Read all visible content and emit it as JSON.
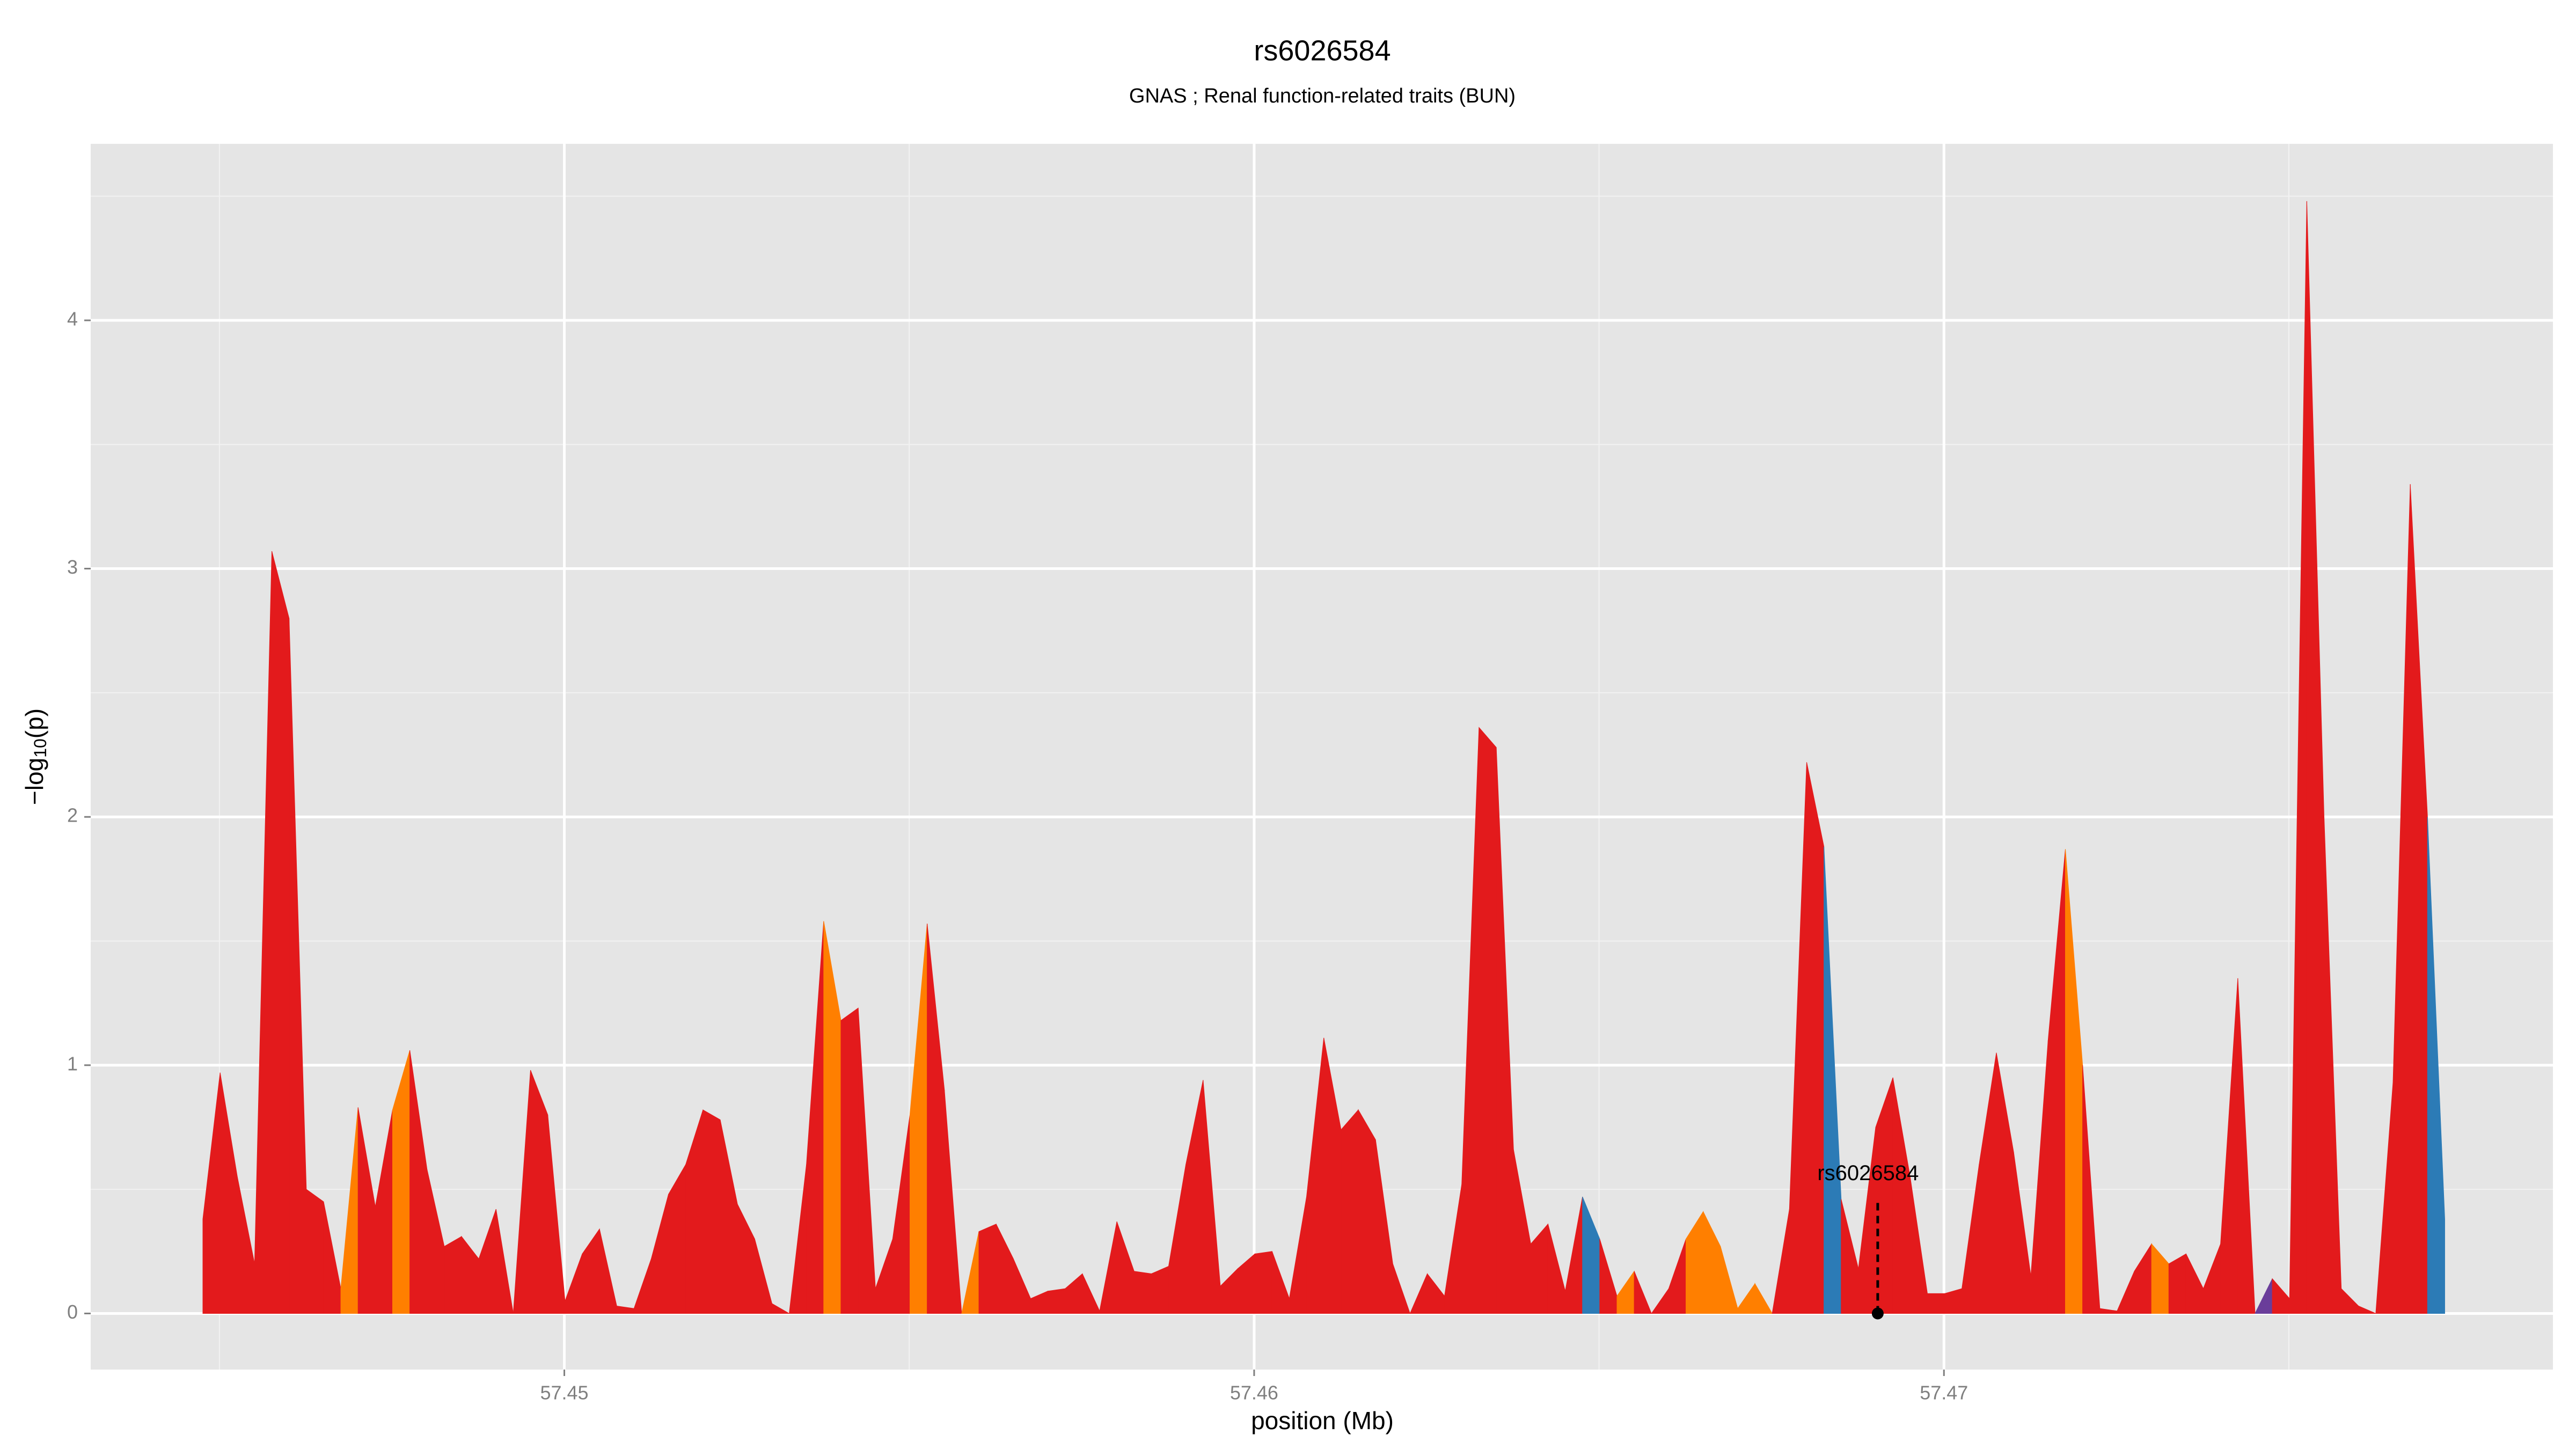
{
  "chart_data": {
    "type": "area",
    "title": "rs6026584",
    "subtitle": "GNAS ; Renal function-related traits (BUN)",
    "xlabel": "position (Mb)",
    "ylabel": {
      "prefix": "−log",
      "sub": "10",
      "suffix": "(p)"
    },
    "xlim": [
      57.443134,
      57.478828
    ],
    "ylim": [
      -0.226,
      4.711
    ],
    "xticks": [
      57.45,
      57.46,
      57.47
    ],
    "yticks": [
      0,
      1,
      2,
      3,
      4
    ],
    "xminor": [
      57.445,
      57.455,
      57.465,
      57.475
    ],
    "yminor": [
      0.5,
      1.5,
      2.5,
      3.5,
      4.5
    ],
    "grid": true,
    "palette": [
      "#e31a1c",
      "#ff7f00",
      "#2c7bb6",
      "#6a3d9a"
    ],
    "x": [
      57.44476,
      57.44501,
      57.44526,
      57.44551,
      57.44576,
      57.44601,
      57.44626,
      57.44651,
      57.44676,
      57.44701,
      57.44726,
      57.44751,
      57.44776,
      57.44801,
      57.44826,
      57.44851,
      57.44876,
      57.44901,
      57.44926,
      57.44951,
      57.44976,
      57.45001,
      57.45026,
      57.45051,
      57.45076,
      57.45101,
      57.45126,
      57.45151,
      57.45176,
      57.45201,
      57.45226,
      57.45251,
      57.45276,
      57.45301,
      57.45326,
      57.45351,
      57.45376,
      57.45401,
      57.45426,
      57.45451,
      57.45476,
      57.45501,
      57.45526,
      57.45551,
      57.45576,
      57.45601,
      57.45626,
      57.45651,
      57.45676,
      57.45701,
      57.45726,
      57.45751,
      57.45776,
      57.45801,
      57.45826,
      57.45851,
      57.45876,
      57.45901,
      57.45926,
      57.45951,
      57.45976,
      57.46001,
      57.46026,
      57.46051,
      57.46076,
      57.46101,
      57.46126,
      57.46151,
      57.46176,
      57.46201,
      57.46226,
      57.46251,
      57.46276,
      57.46301,
      57.46326,
      57.46351,
      57.46376,
      57.46401,
      57.46426,
      57.46451,
      57.46476,
      57.46501,
      57.46526,
      57.46551,
      57.46576,
      57.46601,
      57.46626,
      57.46651,
      57.46676,
      57.46701,
      57.46726,
      57.46751,
      57.46776,
      57.46801,
      57.46826,
      57.46851,
      57.46876,
      57.46901,
      57.46926,
      57.46951,
      57.46976,
      57.47001,
      57.47026,
      57.47051,
      57.47076,
      57.47101,
      57.47126,
      57.47151,
      57.47176,
      57.47201,
      57.47226,
      57.47251,
      57.47276,
      57.47301,
      57.47326,
      57.47351,
      57.47376,
      57.47401,
      57.47426,
      57.47451,
      57.47476,
      57.47501,
      57.47526,
      57.47551,
      57.47576,
      57.47601,
      57.47626,
      57.47651,
      57.47676,
      57.47701,
      57.47726
    ],
    "values": [
      0.38,
      0.97,
      0.55,
      0.2,
      3.07,
      2.8,
      0.5,
      0.45,
      0.1,
      0.83,
      0.43,
      0.82,
      1.06,
      0.58,
      0.27,
      0.31,
      0.22,
      0.42,
      0.0,
      0.98,
      0.8,
      0.05,
      0.24,
      0.34,
      0.03,
      0.02,
      0.22,
      0.48,
      0.6,
      0.82,
      0.78,
      0.44,
      0.3,
      0.04,
      0.0,
      0.6,
      1.58,
      1.18,
      1.23,
      0.1,
      0.3,
      0.8,
      1.57,
      0.9,
      0.0,
      0.33,
      0.36,
      0.22,
      0.06,
      0.09,
      0.1,
      0.16,
      0.01,
      0.37,
      0.17,
      0.16,
      0.19,
      0.6,
      0.94,
      0.11,
      0.18,
      0.24,
      0.25,
      0.06,
      0.47,
      1.11,
      0.74,
      0.82,
      0.7,
      0.2,
      0.0,
      0.16,
      0.07,
      0.52,
      2.36,
      2.28,
      0.66,
      0.28,
      0.36,
      0.09,
      0.47,
      0.3,
      0.07,
      0.17,
      0.0,
      0.1,
      0.3,
      0.41,
      0.27,
      0.02,
      0.12,
      0.0,
      0.42,
      2.22,
      1.88,
      0.46,
      0.18,
      0.75,
      0.95,
      0.55,
      0.08,
      0.08,
      0.1,
      0.6,
      1.05,
      0.65,
      0.15,
      1.1,
      1.87,
      1.0,
      0.02,
      0.01,
      0.17,
      0.28,
      0.2,
      0.24,
      0.1,
      0.28,
      1.35,
      0.0,
      0.14,
      0.06,
      4.48,
      2.0,
      0.1,
      0.03,
      0.0,
      0.93,
      3.34,
      2.0,
      0.38
    ],
    "color_index": [
      0,
      0,
      0,
      0,
      0,
      0,
      0,
      0,
      1,
      0,
      0,
      1,
      0,
      0,
      0,
      0,
      0,
      0,
      0,
      0,
      0,
      0,
      0,
      0,
      0,
      0,
      0,
      0,
      0,
      0,
      0,
      0,
      0,
      0,
      0,
      0,
      1,
      0,
      0,
      0,
      0,
      1,
      0,
      0,
      1,
      0,
      0,
      0,
      0,
      0,
      0,
      0,
      0,
      0,
      0,
      0,
      0,
      0,
      0,
      0,
      0,
      0,
      0,
      0,
      0,
      0,
      0,
      0,
      0,
      0,
      0,
      0,
      0,
      0,
      0,
      0,
      0,
      0,
      0,
      0,
      2,
      0,
      1,
      0,
      0,
      0,
      1,
      1,
      1,
      1,
      1,
      0,
      0,
      0,
      2,
      0,
      0,
      0,
      0,
      0,
      0,
      0,
      0,
      0,
      0,
      0,
      0,
      0,
      1,
      0,
      0,
      0,
      0,
      1,
      0,
      0,
      0,
      0,
      0,
      3,
      0,
      0,
      0,
      0,
      0,
      0,
      0,
      0,
      0,
      2,
      0
    ],
    "annotation": {
      "label": "rs6026584",
      "x": 57.46904,
      "y": 0,
      "label_y": 0.56
    }
  }
}
